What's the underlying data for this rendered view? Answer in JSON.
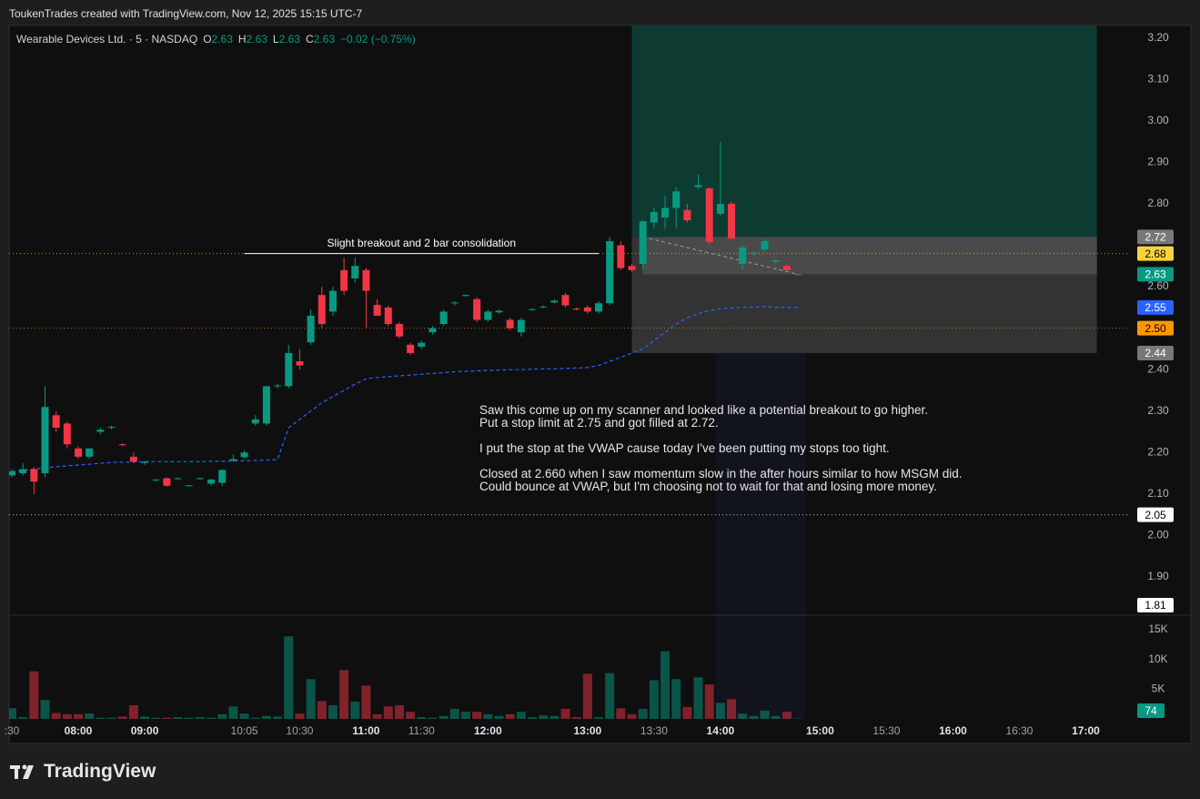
{
  "header": {
    "text": "ToukenTrades created with TradingView.com, Nov 12, 2025 15:15 UTC-7"
  },
  "footer": {
    "brand": "TradingView"
  },
  "chart_data": {
    "type": "candlestick",
    "legend": {
      "title": "Wearable Devices Ltd. · 5 · NASDAQ",
      "ohlc_letters": [
        "O",
        "H",
        "L",
        "C"
      ],
      "change": "−0.02 (−0.75%)"
    },
    "categories": [
      ":30",
      null,
      null,
      null,
      null,
      null,
      "08:00",
      null,
      null,
      null,
      null,
      null,
      "09:00",
      null,
      null,
      null,
      null,
      null,
      null,
      null,
      null,
      "10:05",
      null,
      null,
      null,
      null,
      "10:30",
      null,
      null,
      null,
      null,
      null,
      "11:00",
      null,
      null,
      null,
      null,
      "11:30",
      null,
      null,
      null,
      null,
      null,
      "12:00",
      null,
      null,
      null,
      null,
      null,
      null,
      null,
      null,
      "13:00",
      null,
      null,
      null,
      null,
      null,
      "13:30",
      null,
      null,
      null,
      null,
      null,
      "14:00",
      null,
      null,
      null,
      null,
      null,
      null,
      null,
      null,
      "15:00",
      null,
      null,
      null,
      null,
      null,
      "15:30",
      null,
      null,
      null,
      null,
      null,
      "16:00",
      null,
      null,
      null,
      null,
      null,
      "16:30",
      null,
      null,
      null,
      null,
      null,
      "17:00",
      null,
      null,
      null
    ],
    "open": [
      2.145,
      2.15,
      2.16,
      2.15,
      2.29,
      2.27,
      2.21,
      2.19,
      2.25,
      2.26,
      2.22,
      2.19,
      2.175,
      2.134,
      2.138,
      2.136,
      2.12,
      2.136,
      2.125,
      2.127,
      2.18,
      2.189,
      2.27,
      2.27,
      2.36,
      2.36,
      2.42,
      2.466,
      2.58,
      2.54,
      2.64,
      2.62,
      2.64,
      2.556,
      2.55,
      2.51,
      2.46,
      2.455,
      2.49,
      2.51,
      2.56,
      2.578,
      2.57,
      2.52,
      2.538,
      2.52,
      2.49,
      2.544,
      2.55,
      2.562,
      2.58,
      2.547,
      2.55,
      2.54,
      2.56,
      2.7,
      2.65,
      2.655,
      2.755,
      2.767,
      2.79,
      2.785,
      2.84,
      2.837,
      2.776,
      2.8,
      2.655,
      2.68,
      2.69,
      2.66,
      2.65,
      2.63,
      null,
      null,
      null,
      null,
      null,
      null,
      null,
      null,
      null,
      null,
      null,
      null,
      null,
      null,
      null,
      null,
      null,
      null,
      null,
      null,
      null,
      null,
      null,
      null,
      null,
      null,
      null,
      null,
      null
    ],
    "high": [
      2.16,
      2.175,
      2.165,
      2.36,
      2.3,
      2.275,
      2.215,
      2.21,
      2.26,
      2.265,
      2.222,
      2.2,
      2.18,
      2.136,
      2.14,
      2.14,
      2.122,
      2.14,
      2.136,
      2.16,
      2.195,
      2.205,
      2.29,
      2.36,
      2.365,
      2.46,
      2.45,
      2.545,
      2.6,
      2.6,
      2.67,
      2.67,
      2.645,
      2.57,
      2.555,
      2.515,
      2.465,
      2.47,
      2.505,
      2.545,
      2.565,
      2.582,
      2.575,
      2.545,
      2.545,
      2.525,
      2.525,
      2.548,
      2.555,
      2.57,
      2.585,
      2.55,
      2.555,
      2.565,
      2.72,
      2.71,
      2.655,
      2.76,
      2.79,
      2.82,
      2.84,
      2.8,
      2.87,
      2.84,
      2.95,
      2.805,
      2.7,
      2.685,
      2.715,
      2.665,
      2.655,
      2.63,
      null,
      null,
      null,
      null,
      null,
      null,
      null,
      null,
      null,
      null,
      null,
      null,
      null,
      null,
      null,
      null,
      null,
      null,
      null,
      null,
      null,
      null,
      null,
      null,
      null,
      null,
      null,
      null,
      null
    ],
    "low": [
      2.14,
      2.145,
      2.1,
      2.14,
      2.25,
      2.21,
      2.185,
      2.185,
      2.245,
      2.255,
      2.215,
      2.175,
      2.17,
      2.13,
      2.118,
      2.135,
      2.118,
      2.135,
      2.12,
      2.12,
      2.178,
      2.185,
      2.265,
      2.265,
      2.355,
      2.355,
      2.4,
      2.46,
      2.5,
      2.53,
      2.58,
      2.61,
      2.5,
      2.53,
      2.505,
      2.475,
      2.435,
      2.45,
      2.485,
      2.505,
      2.555,
      2.575,
      2.515,
      2.515,
      2.535,
      2.495,
      2.48,
      2.542,
      2.548,
      2.56,
      2.55,
      2.543,
      2.535,
      2.535,
      2.555,
      2.64,
      2.635,
      2.64,
      2.74,
      2.74,
      2.74,
      2.755,
      2.835,
      2.7,
      2.77,
      2.715,
      2.64,
      2.675,
      2.685,
      2.655,
      2.638,
      2.63,
      null,
      null,
      null,
      null,
      null,
      null,
      null,
      null,
      null,
      null,
      null,
      null,
      null,
      null,
      null,
      null,
      null,
      null,
      null,
      null,
      null,
      null,
      null,
      null,
      null,
      null,
      null,
      null,
      null
    ],
    "close": [
      2.155,
      2.16,
      2.13,
      2.31,
      2.26,
      2.22,
      2.19,
      2.21,
      2.255,
      2.262,
      2.218,
      2.178,
      2.178,
      2.135,
      2.12,
      2.138,
      2.121,
      2.138,
      2.135,
      2.158,
      2.184,
      2.2,
      2.28,
      2.36,
      2.362,
      2.44,
      2.41,
      2.53,
      2.51,
      2.59,
      2.59,
      2.65,
      2.59,
      2.53,
      2.51,
      2.48,
      2.44,
      2.465,
      2.5,
      2.54,
      2.562,
      2.58,
      2.52,
      2.54,
      2.542,
      2.5,
      2.52,
      2.546,
      2.552,
      2.566,
      2.555,
      2.545,
      2.54,
      2.56,
      2.71,
      2.645,
      2.64,
      2.758,
      2.78,
      2.79,
      2.83,
      2.76,
      2.845,
      2.708,
      2.8,
      2.716,
      2.695,
      2.682,
      2.71,
      2.664,
      2.64,
      2.63,
      null,
      null,
      null,
      null,
      null,
      null,
      null,
      null,
      null,
      null,
      null,
      null,
      null,
      null,
      null,
      null,
      null,
      null,
      null,
      null,
      null,
      null,
      null,
      null,
      null,
      null,
      null,
      null,
      null
    ],
    "up_color": "#089981",
    "down_color": "#f23645",
    "ylim": [
      1.81,
      3.23
    ],
    "yticks": [
      {
        "value": 1.9,
        "label": "1.90"
      },
      {
        "value": 2.0,
        "label": "2.00"
      },
      {
        "value": 2.1,
        "label": "2.10"
      },
      {
        "value": 2.2,
        "label": "2.20"
      },
      {
        "value": 2.3,
        "label": "2.30"
      },
      {
        "value": 2.4,
        "label": "2.40"
      },
      {
        "value": 2.6,
        "label": "2.60"
      },
      {
        "value": 2.8,
        "label": "2.80"
      },
      {
        "value": 2.9,
        "label": "2.90"
      },
      {
        "value": 3.0,
        "label": "3.00"
      },
      {
        "value": 3.1,
        "label": "3.10"
      },
      {
        "value": 3.2,
        "label": "3.20"
      }
    ],
    "vwap": {
      "color": "#2962ff",
      "values": [
        2.154,
        2.157,
        2.16,
        2.163,
        2.166,
        2.168,
        2.17,
        2.172,
        2.174,
        2.176,
        2.177,
        2.177,
        2.178,
        2.178,
        2.178,
        2.178,
        2.178,
        2.178,
        2.179,
        2.179,
        2.18,
        2.18,
        2.181,
        2.182,
        2.183,
        2.26,
        2.28,
        2.3,
        2.32,
        2.335,
        2.35,
        2.365,
        2.378,
        2.381,
        2.383,
        2.385,
        2.387,
        2.389,
        2.391,
        2.393,
        2.395,
        2.396,
        2.397,
        2.398,
        2.399,
        2.4,
        2.4,
        2.401,
        2.402,
        2.402,
        2.403,
        2.404,
        2.405,
        2.41,
        2.42,
        2.43,
        2.44,
        2.45,
        2.47,
        2.49,
        2.51,
        2.525,
        2.535,
        2.543,
        2.547,
        2.549,
        2.55,
        2.551,
        2.552,
        2.55,
        2.55,
        2.55,
        null,
        null,
        null,
        null,
        null,
        null,
        null,
        null,
        null,
        null,
        null,
        null,
        null,
        null,
        null,
        null,
        null,
        null,
        null,
        null,
        null,
        null,
        null,
        null,
        null,
        null,
        null,
        null,
        null
      ]
    },
    "volume": {
      "ylim": [
        0,
        17300
      ],
      "yticks": [
        {
          "value": 5000,
          "label": "5K"
        },
        {
          "value": 10000,
          "label": "10K"
        },
        {
          "value": 15000,
          "label": "15K"
        }
      ],
      "values": [
        1800,
        300,
        8000,
        3200,
        1000,
        800,
        800,
        900,
        200,
        200,
        400,
        2300,
        400,
        200,
        200,
        300,
        200,
        300,
        200,
        800,
        2100,
        900,
        200,
        500,
        400,
        13900,
        900,
        6700,
        3000,
        2300,
        8200,
        2900,
        5600,
        800,
        2100,
        2300,
        1200,
        300,
        200,
        500,
        1700,
        1200,
        1200,
        800,
        500,
        800,
        1200,
        300,
        600,
        500,
        1700,
        300,
        7600,
        300,
        7700,
        1800,
        800,
        1700,
        6500,
        11400,
        6700,
        2000,
        7000,
        5800,
        2700,
        3300,
        900,
        500,
        1400,
        500,
        1200,
        74,
        null,
        null,
        null,
        null,
        null,
        null,
        null,
        null,
        null,
        null,
        null,
        null,
        null,
        null,
        null,
        null,
        null,
        null,
        null,
        null,
        null,
        null,
        null,
        null,
        null,
        null,
        null,
        null,
        null
      ]
    },
    "price_markers": [
      {
        "value": 2.68,
        "color": "#f7d23e",
        "text_color": "#000000",
        "dotted": true
      },
      {
        "value": 2.5,
        "label": "2.50",
        "color": "#ff9800",
        "text_color": "#000000",
        "dotted": true
      },
      {
        "value": 2.05,
        "color": "#ffffff",
        "text_color": "#000000",
        "dotted": true
      },
      {
        "value": 1.81,
        "color": "#ffffff",
        "text_color": "#000000",
        "dotted": false
      }
    ],
    "position": {
      "from": 56,
      "to": 98,
      "trade_from": 57,
      "target": 3.24,
      "entry": 2.72,
      "stop": 2.44,
      "level_color": "#787878"
    },
    "annotation": {
      "text": "Slight breakout and 2 bar consolidation",
      "price": 2.68,
      "from": 21,
      "to": 53
    },
    "note": [
      [
        "Saw this come up on my scanner and looked like a potential breakout to go higher.",
        "Put a stop limit at 2.75 and got filled at 2.72."
      ],
      [
        "I put the stop at the VWAP cause today I've been putting my stops too tight."
      ],
      [
        "Closed at 2.660 when I saw momentum slow in the after hours similar to how MSGM did.",
        "Could bounce at VWAP, but I'm choosing not to wait for that and losing more money."
      ]
    ]
  }
}
